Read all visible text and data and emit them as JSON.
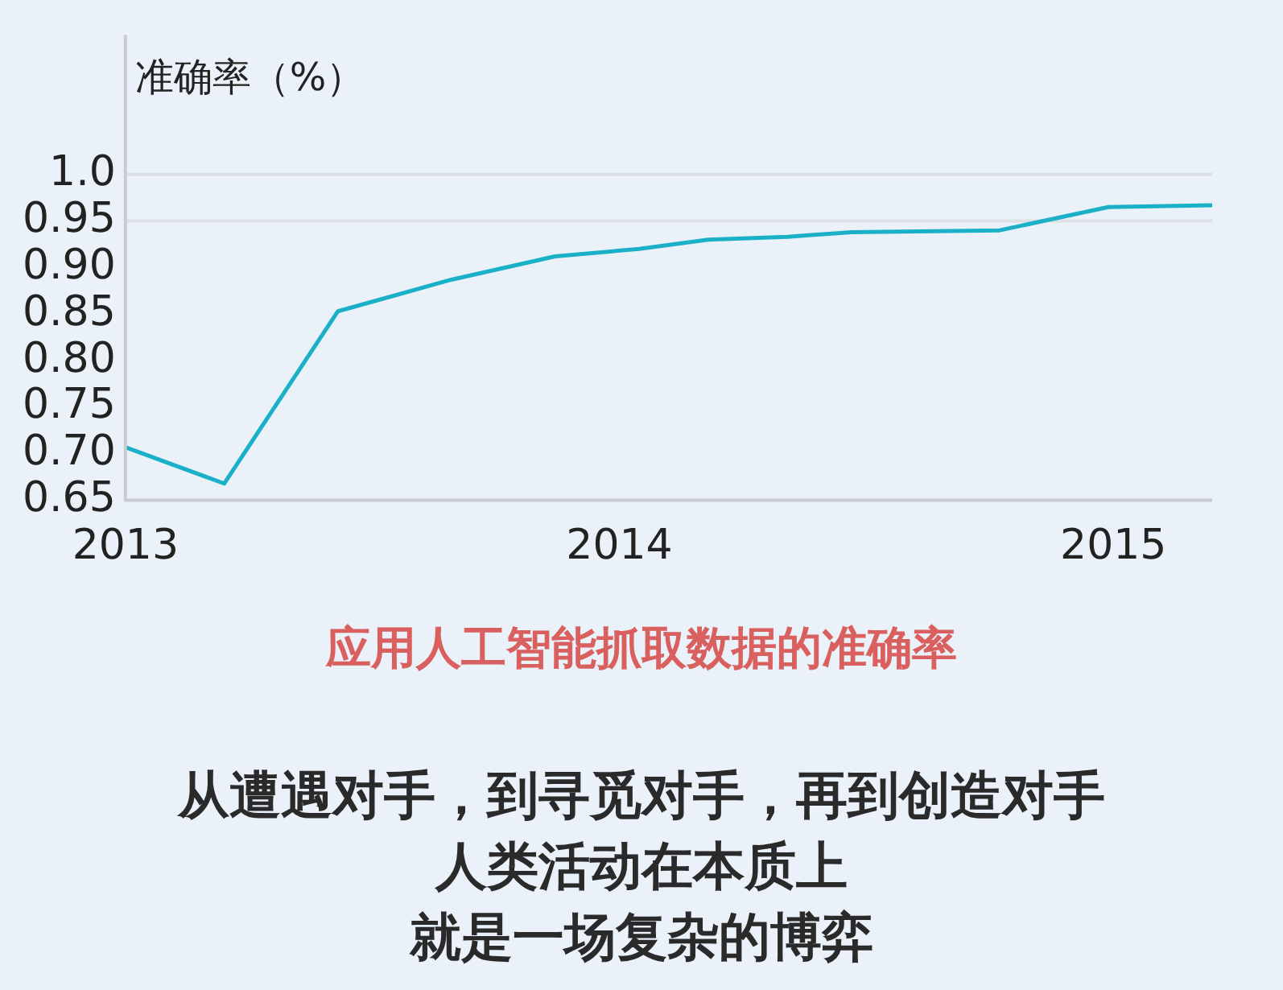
{
  "chart_data": {
    "type": "line",
    "title": "应用人工智能抓取数据的准确率",
    "ylabel": "准确率（%）",
    "x": [
      2013,
      2013.2,
      2013.43,
      2013.66,
      2013.87,
      2014.04,
      2014.18,
      2014.34,
      2014.47,
      2014.77,
      2014.99,
      2015.2
    ],
    "series": [
      {
        "color": "#1ab0c8",
        "values": [
          0.707,
          0.668,
          0.853,
          0.887,
          0.912,
          0.92,
          0.93,
          0.933,
          0.938,
          0.94,
          0.965,
          0.967
        ]
      }
    ],
    "xlim": [
      2013,
      2015.2
    ],
    "xticks": [
      2013,
      2014,
      2015
    ],
    "ylim": [
      0.65,
      1.15
    ],
    "yticks": [
      0.65,
      {
        "value": 0.7,
        "label": "0.70"
      },
      0.75,
      {
        "value": 0.8,
        "label": "0.80"
      },
      0.85,
      {
        "value": 0.9,
        "label": "0.90"
      },
      0.95,
      {
        "value": 1.0,
        "label": "1.0"
      }
    ],
    "ref_lines": [
      {
        "axis": "y",
        "value": 1.0,
        "color": "#dcdfe3"
      },
      {
        "axis": "y",
        "value": 0.95,
        "color": "#dcdfe3"
      }
    ],
    "grid": false,
    "legend": false,
    "marker": "none",
    "line_style": "solid",
    "annotations": [
      "从遭遇对手，到寻觅对手，再到创造对手",
      "人类活动在本质上",
      "就是一场复杂的博弈"
    ]
  }
}
